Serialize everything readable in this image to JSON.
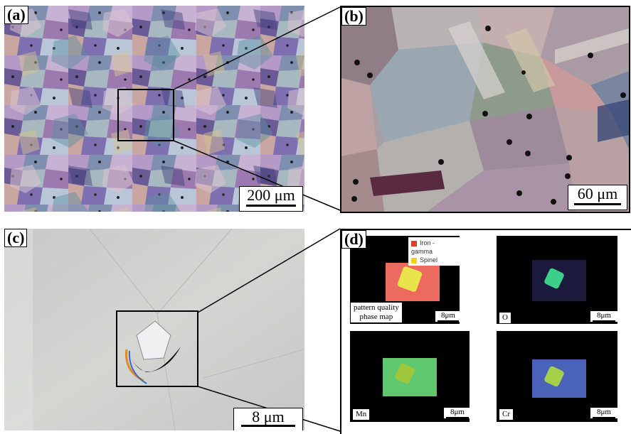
{
  "figure": {
    "panels": {
      "a": {
        "label": "(a)",
        "scale": "200 μm"
      },
      "b": {
        "label": "(b)",
        "scale": "60 μm"
      },
      "c": {
        "label": "(c)",
        "scale": "8 μm"
      },
      "d": {
        "label": "(d)",
        "legend": [
          {
            "name": "Iron - gamma",
            "color": "#e0402a"
          },
          {
            "name": "Spinel",
            "color": "#f2d21c"
          }
        ],
        "maps": [
          {
            "label_line1": "pattern quality",
            "label_line2": "phase map",
            "scale": "8μm"
          },
          {
            "label": "O",
            "scale": "8μm"
          },
          {
            "label": "Mn",
            "scale": "8μm"
          },
          {
            "label": "Cr",
            "scale": "8μm"
          }
        ]
      }
    }
  }
}
